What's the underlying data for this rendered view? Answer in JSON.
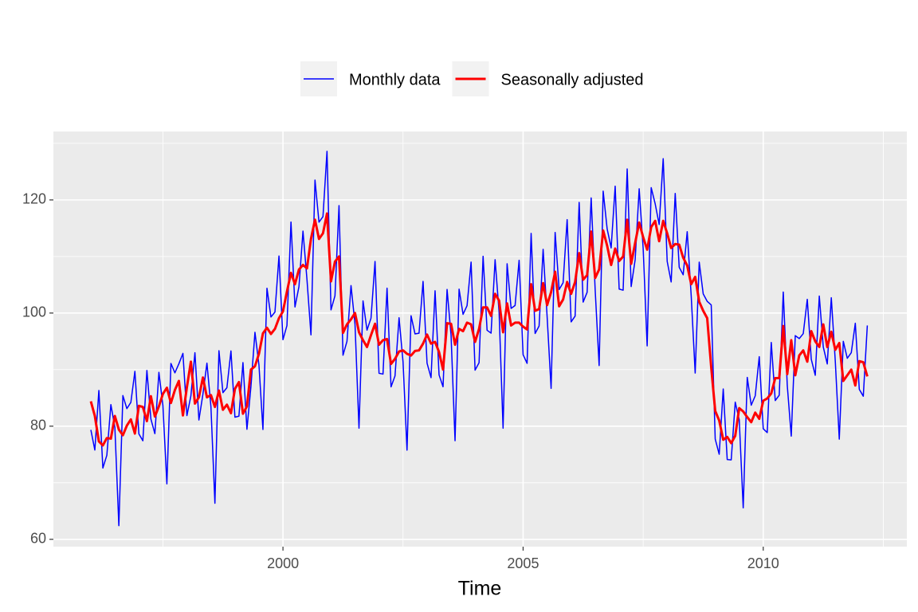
{
  "chart_data": {
    "type": "line",
    "x_label": "Time",
    "legend": "top",
    "grid": true,
    "xlim": [
      1995.22,
      2012.99
    ],
    "ylim": [
      58.7,
      132.1
    ],
    "xticks": [
      2000,
      2005,
      2010
    ],
    "yticks": [
      60,
      80,
      100,
      120
    ],
    "xminor": [
      1997.5,
      2002.5,
      2007.5,
      2012.5
    ],
    "yminor": [
      70,
      90,
      110,
      130
    ],
    "x": [
      1996,
      1996.083,
      1996.167,
      1996.25,
      1996.333,
      1996.417,
      1996.5,
      1996.583,
      1996.667,
      1996.75,
      1996.833,
      1996.917,
      1997,
      1997.083,
      1997.167,
      1997.25,
      1997.333,
      1997.417,
      1997.5,
      1997.583,
      1997.667,
      1997.75,
      1997.833,
      1997.917,
      1998,
      1998.083,
      1998.167,
      1998.25,
      1998.333,
      1998.417,
      1998.5,
      1998.583,
      1998.667,
      1998.75,
      1998.833,
      1998.917,
      1999,
      1999.083,
      1999.167,
      1999.25,
      1999.333,
      1999.417,
      1999.5,
      1999.583,
      1999.667,
      1999.75,
      1999.833,
      1999.917,
      2000,
      2000.083,
      2000.167,
      2000.25,
      2000.333,
      2000.417,
      2000.5,
      2000.583,
      2000.667,
      2000.75,
      2000.833,
      2000.917,
      2001,
      2001.083,
      2001.167,
      2001.25,
      2001.333,
      2001.417,
      2001.5,
      2001.583,
      2001.667,
      2001.75,
      2001.833,
      2001.917,
      2002,
      2002.083,
      2002.167,
      2002.25,
      2002.333,
      2002.417,
      2002.5,
      2002.583,
      2002.667,
      2002.75,
      2002.833,
      2002.917,
      2003,
      2003.083,
      2003.167,
      2003.25,
      2003.333,
      2003.417,
      2003.5,
      2003.583,
      2003.667,
      2003.75,
      2003.833,
      2003.917,
      2004,
      2004.083,
      2004.167,
      2004.25,
      2004.333,
      2004.417,
      2004.5,
      2004.583,
      2004.667,
      2004.75,
      2004.833,
      2004.917,
      2005,
      2005.083,
      2005.167,
      2005.25,
      2005.333,
      2005.417,
      2005.5,
      2005.583,
      2005.667,
      2005.75,
      2005.833,
      2005.917,
      2006,
      2006.083,
      2006.167,
      2006.25,
      2006.333,
      2006.417,
      2006.5,
      2006.583,
      2006.667,
      2006.75,
      2006.833,
      2006.917,
      2007,
      2007.083,
      2007.167,
      2007.25,
      2007.333,
      2007.417,
      2007.5,
      2007.583,
      2007.667,
      2007.75,
      2007.833,
      2007.917,
      2008,
      2008.083,
      2008.167,
      2008.25,
      2008.333,
      2008.417,
      2008.5,
      2008.583,
      2008.667,
      2008.75,
      2008.833,
      2008.917,
      2009,
      2009.083,
      2009.167,
      2009.25,
      2009.333,
      2009.417,
      2009.5,
      2009.583,
      2009.667,
      2009.75,
      2009.833,
      2009.917,
      2010,
      2010.083,
      2010.167,
      2010.25,
      2010.333,
      2010.417,
      2010.5,
      2010.583,
      2010.667,
      2010.75,
      2010.833,
      2010.917,
      2011,
      2011.083,
      2011.167,
      2011.25,
      2011.333,
      2011.417,
      2011.5,
      2011.583,
      2011.667,
      2011.75,
      2011.833,
      2011.917,
      2012,
      2012.083,
      2012.167
    ],
    "series": [
      {
        "name": "Monthly data",
        "color": "#0000ff",
        "width": 1.5,
        "values": [
          79.35,
          75.78,
          86.32,
          72.6,
          74.86,
          83.81,
          79.8,
          62.41,
          85.41,
          83.11,
          84.21,
          89.7,
          78.64,
          77.42,
          89.86,
          81.27,
          78.68,
          89.51,
          83.67,
          69.8,
          91.09,
          89.43,
          91.04,
          92.87,
          81.87,
          85.36,
          92.98,
          81.09,
          85.64,
          91.14,
          83.46,
          66.37,
          93.34,
          85.93,
          86.81,
          93.3,
          81.59,
          81.77,
          91.24,
          79.45,
          86.99,
          96.6,
          90.81,
          79.41,
          104.38,
          99.3,
          100.17,
          110.09,
          95.29,
          97.79,
          116.1,
          101.07,
          104.67,
          114.49,
          105.91,
          96.14,
          123.51,
          116.07,
          117.05,
          128.59,
          100.56,
          103.05,
          119,
          92.54,
          95.01,
          104.86,
          98.02,
          79.64,
          102.15,
          96.98,
          99.09,
          109.12,
          89.36,
          89.21,
          104.4,
          86.95,
          88.89,
          99.17,
          91.37,
          75.76,
          99.52,
          96.31,
          96.44,
          105.59,
          91.15,
          88.58,
          103.94,
          89.07,
          86.97,
          104.17,
          96.08,
          77.43,
          104.22,
          99.77,
          101.3,
          109.01,
          89.9,
          91.22,
          110.04,
          96.96,
          96.45,
          109.43,
          100.2,
          79.64,
          108.71,
          100.82,
          101.34,
          109.33,
          92.62,
          91.11,
          114.08,
          96.39,
          97.71,
          111.26,
          99.37,
          86.68,
          114.25,
          104.16,
          105.37,
          116.52,
          98.44,
          99.46,
          119.56,
          101.94,
          103.67,
          120.35,
          104.19,
          90.72,
          121.55,
          114.89,
          111.52,
          122.44,
          104.24,
          104.04,
          125.48,
          104.68,
          109.42,
          121.97,
          111.36,
          94.19,
          122.17,
          119.32,
          115.65,
          127.3,
          109.14,
          105.5,
          121.15,
          108.1,
          106.77,
          114.39,
          103.05,
          89.39,
          109,
          103.4,
          102.07,
          101.44,
          77.72,
          75.04,
          86.57,
          74.1,
          74.04,
          84.25,
          81.15,
          65.56,
          88.62,
          83.71,
          85.36,
          92.29,
          79.54,
          78.87,
          94.8,
          84.53,
          85.47,
          103.72,
          87.23,
          78.24,
          96.01,
          95.49,
          96.36,
          102.43,
          91.84,
          89,
          103,
          94,
          91,
          102.7,
          91.5,
          77.7,
          95,
          92,
          93,
          98.2,
          86.5,
          85.3,
          97.8
        ]
      },
      {
        "name": "Seasonally adjusted",
        "color": "#ff0000",
        "width": 3,
        "values": [
          84.4,
          81.8,
          77.3,
          76.6,
          77.9,
          77.8,
          81.8,
          79.4,
          78.4,
          80.1,
          81.2,
          78.7,
          83.6,
          83.4,
          80.9,
          85.3,
          81.7,
          83.5,
          85.7,
          86.8,
          84.1,
          86.4,
          88,
          81.9,
          86.9,
          91.4,
          84,
          85.1,
          88.6,
          85.1,
          85.5,
          83.4,
          86.3,
          82.9,
          83.8,
          82.3,
          86.6,
          87.8,
          82.2,
          83.5,
          90,
          90.6,
          92.8,
          96.4,
          97.4,
          96.3,
          97.2,
          99.1,
          100.3,
          103.8,
          107.1,
          105.1,
          107.7,
          108.5,
          107.9,
          113.1,
          116.5,
          113.1,
          114.1,
          117.6,
          105.6,
          109.1,
          110,
          96.5,
          98,
          98.9,
          100,
          96.6,
          95.2,
          94,
          96.1,
          98.1,
          94.4,
          95.2,
          95.4,
          91,
          91.9,
          93.2,
          93.4,
          92.8,
          92.5,
          93.3,
          93.4,
          94.6,
          96.2,
          94.6,
          94.9,
          93.1,
          90,
          98.2,
          98.1,
          94.4,
          97.2,
          96.8,
          98.3,
          98,
          94.9,
          97.2,
          101,
          101,
          99.5,
          103.4,
          102.2,
          96.6,
          101.7,
          97.8,
          98.3,
          98.3,
          97.6,
          97.1,
          105.1,
          100.4,
          100.7,
          105.3,
          101.4,
          103.7,
          107.3,
          101.2,
          102.4,
          105.5,
          103.4,
          105.5,
          110.6,
          105.9,
          106.7,
          114.4,
          106.2,
          107.7,
          114.6,
          111.9,
          108.5,
          111.4,
          109.2,
          110,
          116.5,
          108.7,
          112.4,
          116,
          113.4,
          111.2,
          115.2,
          116.3,
          112.7,
          116.3,
          114.1,
          111.5,
          112.2,
          112.1,
          109.8,
          108.4,
          105.1,
          106.4,
          102,
          100.4,
          99.1,
          90.4,
          82.7,
          81,
          77.6,
          78.1,
          77,
          78.3,
          83.2,
          82.6,
          81.6,
          80.7,
          82.4,
          81.3,
          84.5,
          84.9,
          85.8,
          88.5,
          88.5,
          97.7,
          89.2,
          95.2,
          89,
          92.5,
          93.4,
          91.4,
          96.8,
          95,
          94,
          98,
          94,
          96.7,
          93.5,
          94.7,
          88,
          89,
          90,
          87.2,
          91.5,
          91.3,
          88.8
        ]
      }
    ]
  }
}
